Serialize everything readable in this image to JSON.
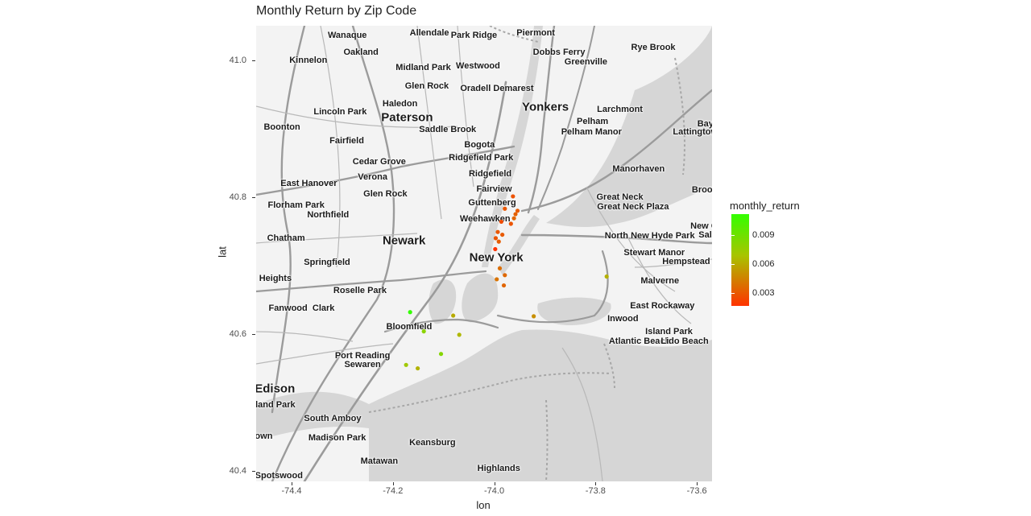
{
  "chart_data": {
    "type": "scatter",
    "title": "Monthly Return by Zip Code",
    "xlabel": "lon",
    "ylabel": "lat",
    "xlim": [
      -74.47,
      -73.57
    ],
    "ylim": [
      40.385,
      41.05
    ],
    "x_ticks": [
      -74.4,
      -74.2,
      -74.0,
      -73.8,
      -73.6
    ],
    "x_tick_labels": [
      "-74.4",
      "-74.2",
      "-74.0",
      "-73.8",
      "-73.6"
    ],
    "y_ticks": [
      40.4,
      40.6,
      40.8,
      41.0
    ],
    "y_tick_labels": [
      "40.4",
      "40.6",
      "40.8",
      "41.0"
    ],
    "grid": false,
    "legend": {
      "title": "monthly_return",
      "position": "right",
      "range": [
        0.0017,
        0.0112
      ],
      "breaks": [
        0.003,
        0.006,
        0.009
      ],
      "break_labels": [
        "0.003",
        "0.006",
        "0.009"
      ],
      "low_color": "#ff3300",
      "mid_color": "#a8c400",
      "high_color": "#33ff00"
    },
    "points": [
      {
        "lon": -73.963,
        "lat": 40.801,
        "monthly_return": 0.0028
      },
      {
        "lon": -73.979,
        "lat": 40.783,
        "monthly_return": 0.003
      },
      {
        "lon": -73.954,
        "lat": 40.78,
        "monthly_return": 0.0031
      },
      {
        "lon": -73.958,
        "lat": 40.775,
        "monthly_return": 0.0033
      },
      {
        "lon": -73.961,
        "lat": 40.769,
        "monthly_return": 0.0035
      },
      {
        "lon": -73.986,
        "lat": 40.764,
        "monthly_return": 0.0026
      },
      {
        "lon": -73.967,
        "lat": 40.761,
        "monthly_return": 0.0029
      },
      {
        "lon": -73.993,
        "lat": 40.749,
        "monthly_return": 0.003
      },
      {
        "lon": -73.984,
        "lat": 40.745,
        "monthly_return": 0.0031
      },
      {
        "lon": -73.997,
        "lat": 40.74,
        "monthly_return": 0.0029
      },
      {
        "lon": -73.991,
        "lat": 40.735,
        "monthly_return": 0.0032
      },
      {
        "lon": -73.998,
        "lat": 40.724,
        "monthly_return": 0.0017
      },
      {
        "lon": -73.989,
        "lat": 40.696,
        "monthly_return": 0.0038
      },
      {
        "lon": -73.979,
        "lat": 40.686,
        "monthly_return": 0.0036
      },
      {
        "lon": -73.995,
        "lat": 40.68,
        "monthly_return": 0.004
      },
      {
        "lon": -73.981,
        "lat": 40.671,
        "monthly_return": 0.0035
      },
      {
        "lon": -73.778,
        "lat": 40.684,
        "monthly_return": 0.0062
      },
      {
        "lon": -74.166,
        "lat": 40.632,
        "monthly_return": 0.0112
      },
      {
        "lon": -74.081,
        "lat": 40.627,
        "monthly_return": 0.006
      },
      {
        "lon": -73.922,
        "lat": 40.626,
        "monthly_return": 0.005
      },
      {
        "lon": -74.139,
        "lat": 40.604,
        "monthly_return": 0.008
      },
      {
        "lon": -74.069,
        "lat": 40.599,
        "monthly_return": 0.0065
      },
      {
        "lon": -74.105,
        "lat": 40.571,
        "monthly_return": 0.0082
      },
      {
        "lon": -74.174,
        "lat": 40.555,
        "monthly_return": 0.0072
      },
      {
        "lon": -74.151,
        "lat": 40.55,
        "monthly_return": 0.0063
      }
    ]
  },
  "map_labels": [
    {
      "text": "Wanaque",
      "lon": -74.29,
      "lat": 41.036,
      "big": false
    },
    {
      "text": "Allendale",
      "lon": -74.128,
      "lat": 41.04,
      "big": false
    },
    {
      "text": "Park Ridge",
      "lon": -74.04,
      "lat": 41.036,
      "big": false
    },
    {
      "text": "Piermont",
      "lon": -73.918,
      "lat": 41.04,
      "big": false
    },
    {
      "text": "Kinnelon",
      "lon": -74.367,
      "lat": 40.999,
      "big": false
    },
    {
      "text": "Oakland",
      "lon": -74.263,
      "lat": 41.011,
      "big": false
    },
    {
      "text": "Dobbs Ferry",
      "lon": -73.872,
      "lat": 41.011,
      "big": false
    },
    {
      "text": "Rye Brook",
      "lon": -73.686,
      "lat": 41.018,
      "big": false
    },
    {
      "text": "Greenville",
      "lon": -73.819,
      "lat": 40.997,
      "big": false
    },
    {
      "text": "Midland Park",
      "lon": -74.14,
      "lat": 40.989,
      "big": false
    },
    {
      "text": "Westwood",
      "lon": -74.032,
      "lat": 40.991,
      "big": false
    },
    {
      "text": "Glen Rock",
      "lon": -74.133,
      "lat": 40.962,
      "big": false
    },
    {
      "text": "Oradell",
      "lon": -74.037,
      "lat": 40.958,
      "big": false
    },
    {
      "text": "Demarest",
      "lon": -73.962,
      "lat": 40.958,
      "big": false
    },
    {
      "text": "Haledon",
      "lon": -74.186,
      "lat": 40.936,
      "big": false
    },
    {
      "text": "Yonkers",
      "lon": -73.899,
      "lat": 40.931,
      "big": true
    },
    {
      "text": "Larchmont",
      "lon": -73.752,
      "lat": 40.928,
      "big": false
    },
    {
      "text": "Lincoln Park",
      "lon": -74.304,
      "lat": 40.924,
      "big": false
    },
    {
      "text": "Paterson",
      "lon": -74.172,
      "lat": 40.916,
      "big": true
    },
    {
      "text": "Pelham",
      "lon": -73.806,
      "lat": 40.91,
      "big": false
    },
    {
      "text": "Boonton",
      "lon": -74.419,
      "lat": 40.902,
      "big": false
    },
    {
      "text": "Saddle Brook",
      "lon": -74.092,
      "lat": 40.899,
      "big": false
    },
    {
      "text": "Pelham Manor",
      "lon": -73.808,
      "lat": 40.895,
      "big": false
    },
    {
      "text": "Bay",
      "lon": -73.583,
      "lat": 40.907,
      "big": false
    },
    {
      "text": "Lattingtow",
      "lon": -73.603,
      "lat": 40.895,
      "big": false
    },
    {
      "text": "Fairfield",
      "lon": -74.291,
      "lat": 40.882,
      "big": false
    },
    {
      "text": "Bogota",
      "lon": -74.029,
      "lat": 40.876,
      "big": false
    },
    {
      "text": "Ridgefield Park",
      "lon": -74.026,
      "lat": 40.857,
      "big": false
    },
    {
      "text": "Cedar Grove",
      "lon": -74.227,
      "lat": 40.851,
      "big": false
    },
    {
      "text": "Manorhaven",
      "lon": -73.715,
      "lat": 40.841,
      "big": false
    },
    {
      "text": "Ridgefield",
      "lon": -74.008,
      "lat": 40.834,
      "big": false
    },
    {
      "text": "Verona",
      "lon": -74.24,
      "lat": 40.829,
      "big": false
    },
    {
      "text": "East Hanover",
      "lon": -74.366,
      "lat": 40.82,
      "big": false
    },
    {
      "text": "Fairview",
      "lon": -74.0,
      "lat": 40.812,
      "big": false
    },
    {
      "text": "Glen Rock",
      "lon": -74.215,
      "lat": 40.804,
      "big": false
    },
    {
      "text": "Great Neck",
      "lon": -73.752,
      "lat": 40.8,
      "big": false
    },
    {
      "text": "Brool",
      "lon": -73.587,
      "lat": 40.81,
      "big": false
    },
    {
      "text": "Guttenberg",
      "lon": -74.004,
      "lat": 40.792,
      "big": false
    },
    {
      "text": "Florham Park",
      "lon": -74.391,
      "lat": 40.788,
      "big": false
    },
    {
      "text": "Great Neck Plaza",
      "lon": -73.726,
      "lat": 40.786,
      "big": false
    },
    {
      "text": "Northfield",
      "lon": -74.328,
      "lat": 40.774,
      "big": false
    },
    {
      "text": "Weehawken",
      "lon": -74.018,
      "lat": 40.768,
      "big": false
    },
    {
      "text": "New C",
      "lon": -73.586,
      "lat": 40.757,
      "big": false
    },
    {
      "text": "Sali",
      "lon": -73.581,
      "lat": 40.745,
      "big": false
    },
    {
      "text": "Chatham",
      "lon": -74.411,
      "lat": 40.74,
      "big": false
    },
    {
      "text": "Newark",
      "lon": -74.178,
      "lat": 40.736,
      "big": true
    },
    {
      "text": "North New Hyde Park",
      "lon": -73.693,
      "lat": 40.743,
      "big": false
    },
    {
      "text": "Stewart Manor",
      "lon": -73.684,
      "lat": 40.719,
      "big": false
    },
    {
      "text": "New York",
      "lon": -73.996,
      "lat": 40.712,
      "big": true
    },
    {
      "text": "Springfield",
      "lon": -74.33,
      "lat": 40.705,
      "big": false
    },
    {
      "text": "Hempstead",
      "lon": -73.621,
      "lat": 40.706,
      "big": false
    },
    {
      "text": "Heights",
      "lon": -74.432,
      "lat": 40.681,
      "big": false
    },
    {
      "text": "Malverne",
      "lon": -73.673,
      "lat": 40.678,
      "big": false
    },
    {
      "text": "Roselle Park",
      "lon": -74.265,
      "lat": 40.664,
      "big": false
    },
    {
      "text": "Fanwood",
      "lon": -74.407,
      "lat": 40.638,
      "big": false
    },
    {
      "text": "Clark",
      "lon": -74.337,
      "lat": 40.638,
      "big": false
    },
    {
      "text": "East Rockaway",
      "lon": -73.668,
      "lat": 40.641,
      "big": false
    },
    {
      "text": "Inwood",
      "lon": -73.746,
      "lat": 40.622,
      "big": false
    },
    {
      "text": "Bloomfield",
      "lon": -74.168,
      "lat": 40.61,
      "big": false
    },
    {
      "text": "Island Park",
      "lon": -73.655,
      "lat": 40.604,
      "big": false
    },
    {
      "text": "Atlantic Beach",
      "lon": -73.713,
      "lat": 40.589,
      "big": false
    },
    {
      "text": "Lido Beach",
      "lon": -73.624,
      "lat": 40.589,
      "big": false
    },
    {
      "text": "Port Reading",
      "lon": -74.26,
      "lat": 40.568,
      "big": false
    },
    {
      "text": "Sewaren",
      "lon": -74.26,
      "lat": 40.555,
      "big": false
    },
    {
      "text": "Edison",
      "lon": -74.433,
      "lat": 40.52,
      "big": true
    },
    {
      "text": "land Park",
      "lon": -74.432,
      "lat": 40.497,
      "big": false
    },
    {
      "text": "South Amboy",
      "lon": -74.319,
      "lat": 40.477,
      "big": false
    },
    {
      "text": "own",
      "lon": -74.455,
      "lat": 40.451,
      "big": false
    },
    {
      "text": "Madison Park",
      "lon": -74.31,
      "lat": 40.449,
      "big": false
    },
    {
      "text": "Keansburg",
      "lon": -74.122,
      "lat": 40.441,
      "big": false
    },
    {
      "text": "Matawan",
      "lon": -74.227,
      "lat": 40.414,
      "big": false
    },
    {
      "text": "Highlands",
      "lon": -73.991,
      "lat": 40.404,
      "big": false
    },
    {
      "text": "Spotswood",
      "lon": -74.425,
      "lat": 40.393,
      "big": false
    }
  ]
}
